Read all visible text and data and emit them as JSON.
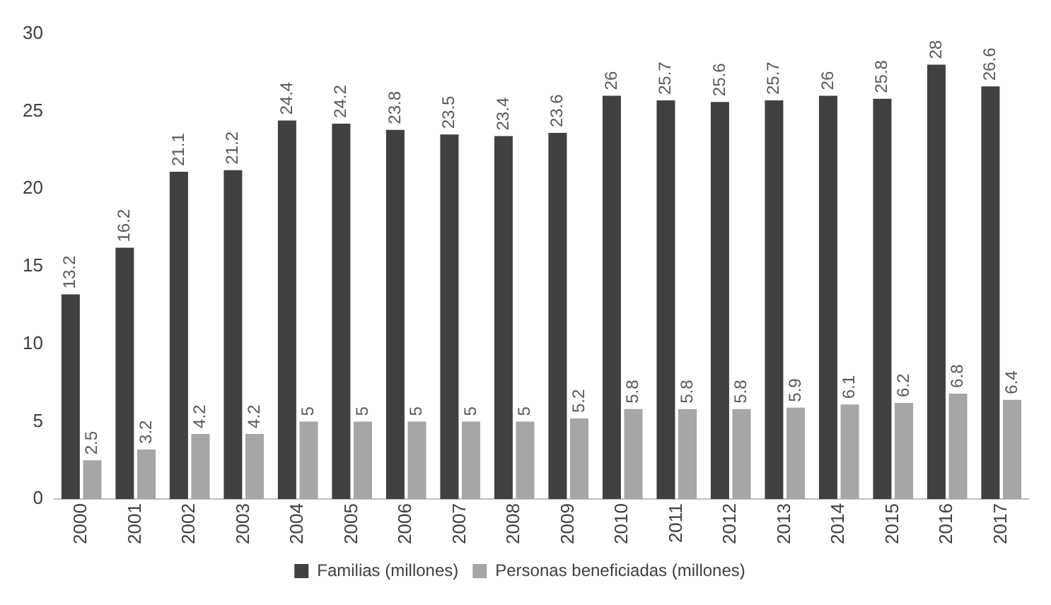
{
  "chart_data": {
    "type": "bar",
    "categories": [
      "2000",
      "2001",
      "2002",
      "2003",
      "2004",
      "2005",
      "2006",
      "2007",
      "2008",
      "2009",
      "2010",
      "2011",
      "2012",
      "2013",
      "2014",
      "2015",
      "2016",
      "2017"
    ],
    "series": [
      {
        "name": "Familias (millones)",
        "color": "#404040",
        "values": [
          13.2,
          16.2,
          21.1,
          21.2,
          24.4,
          24.2,
          23.8,
          23.5,
          23.4,
          23.6,
          26,
          25.7,
          25.6,
          25.7,
          26,
          25.8,
          28,
          26.6
        ]
      },
      {
        "name": "Personas beneficiadas (millones)",
        "color": "#a6a6a6",
        "values": [
          2.5,
          3.2,
          4.2,
          4.2,
          5,
          5,
          5,
          5,
          5,
          5.2,
          5.8,
          5.8,
          5.8,
          5.9,
          6.1,
          6.2,
          6.8,
          6.4
        ]
      }
    ],
    "ylim": [
      0,
      30
    ],
    "yticks": [
      0,
      5,
      10,
      15,
      20,
      25,
      30
    ],
    "grid": false,
    "legend": "bottom",
    "data_labels": true
  }
}
